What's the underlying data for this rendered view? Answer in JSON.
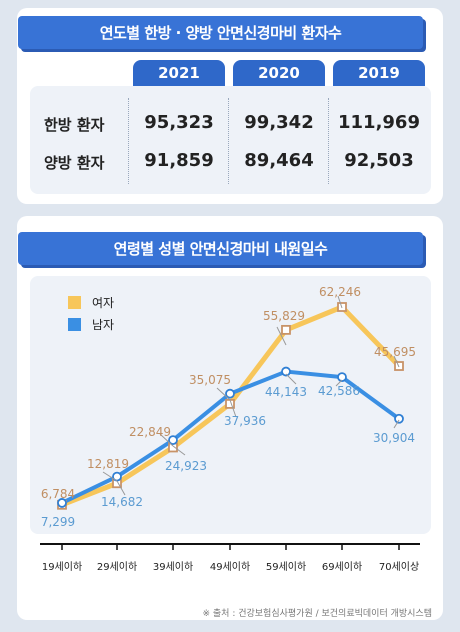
{
  "top": {
    "title": "연도별 한방 · 양방 안면신경마비 환자수",
    "years": [
      "2021",
      "2020",
      "2019"
    ],
    "rows": [
      {
        "label": "한방 환자",
        "values": [
          "95,323",
          "99,342",
          "111,969"
        ]
      },
      {
        "label": "양방 환자",
        "values": [
          "91,859",
          "89,464",
          "92,503"
        ]
      }
    ]
  },
  "bottom": {
    "title": "연령별 성별 안면신경마비 내원일수",
    "source": "※ 출처 : 건강보험심사평가원 / 보건의료빅데이터 개방시스템"
  },
  "colors": {
    "female": "#f7c65a",
    "male": "#3a8fe3",
    "banner": "#3873d6",
    "yearHeader": "#2f68c9"
  },
  "chart_data": {
    "type": "line",
    "categories": [
      "19세이하",
      "29세이하",
      "39세이하",
      "49세이하",
      "59세이하",
      "69세이하",
      "70세이상"
    ],
    "series": [
      {
        "name": "여자",
        "values": [
          6784,
          12819,
          22849,
          35075,
          55829,
          62246,
          45695
        ],
        "labels": [
          "6,784",
          "12,819",
          "22,849",
          "35,075",
          "55,829",
          "62,246",
          "45,695"
        ]
      },
      {
        "name": "남자",
        "values": [
          7299,
          14682,
          24923,
          37936,
          44143,
          42586,
          30904
        ],
        "labels": [
          "7,299",
          "14,682",
          "24,923",
          "37,936",
          "44,143",
          "42,586",
          "30,904"
        ]
      }
    ],
    "legend": "top-left",
    "grid": false
  }
}
